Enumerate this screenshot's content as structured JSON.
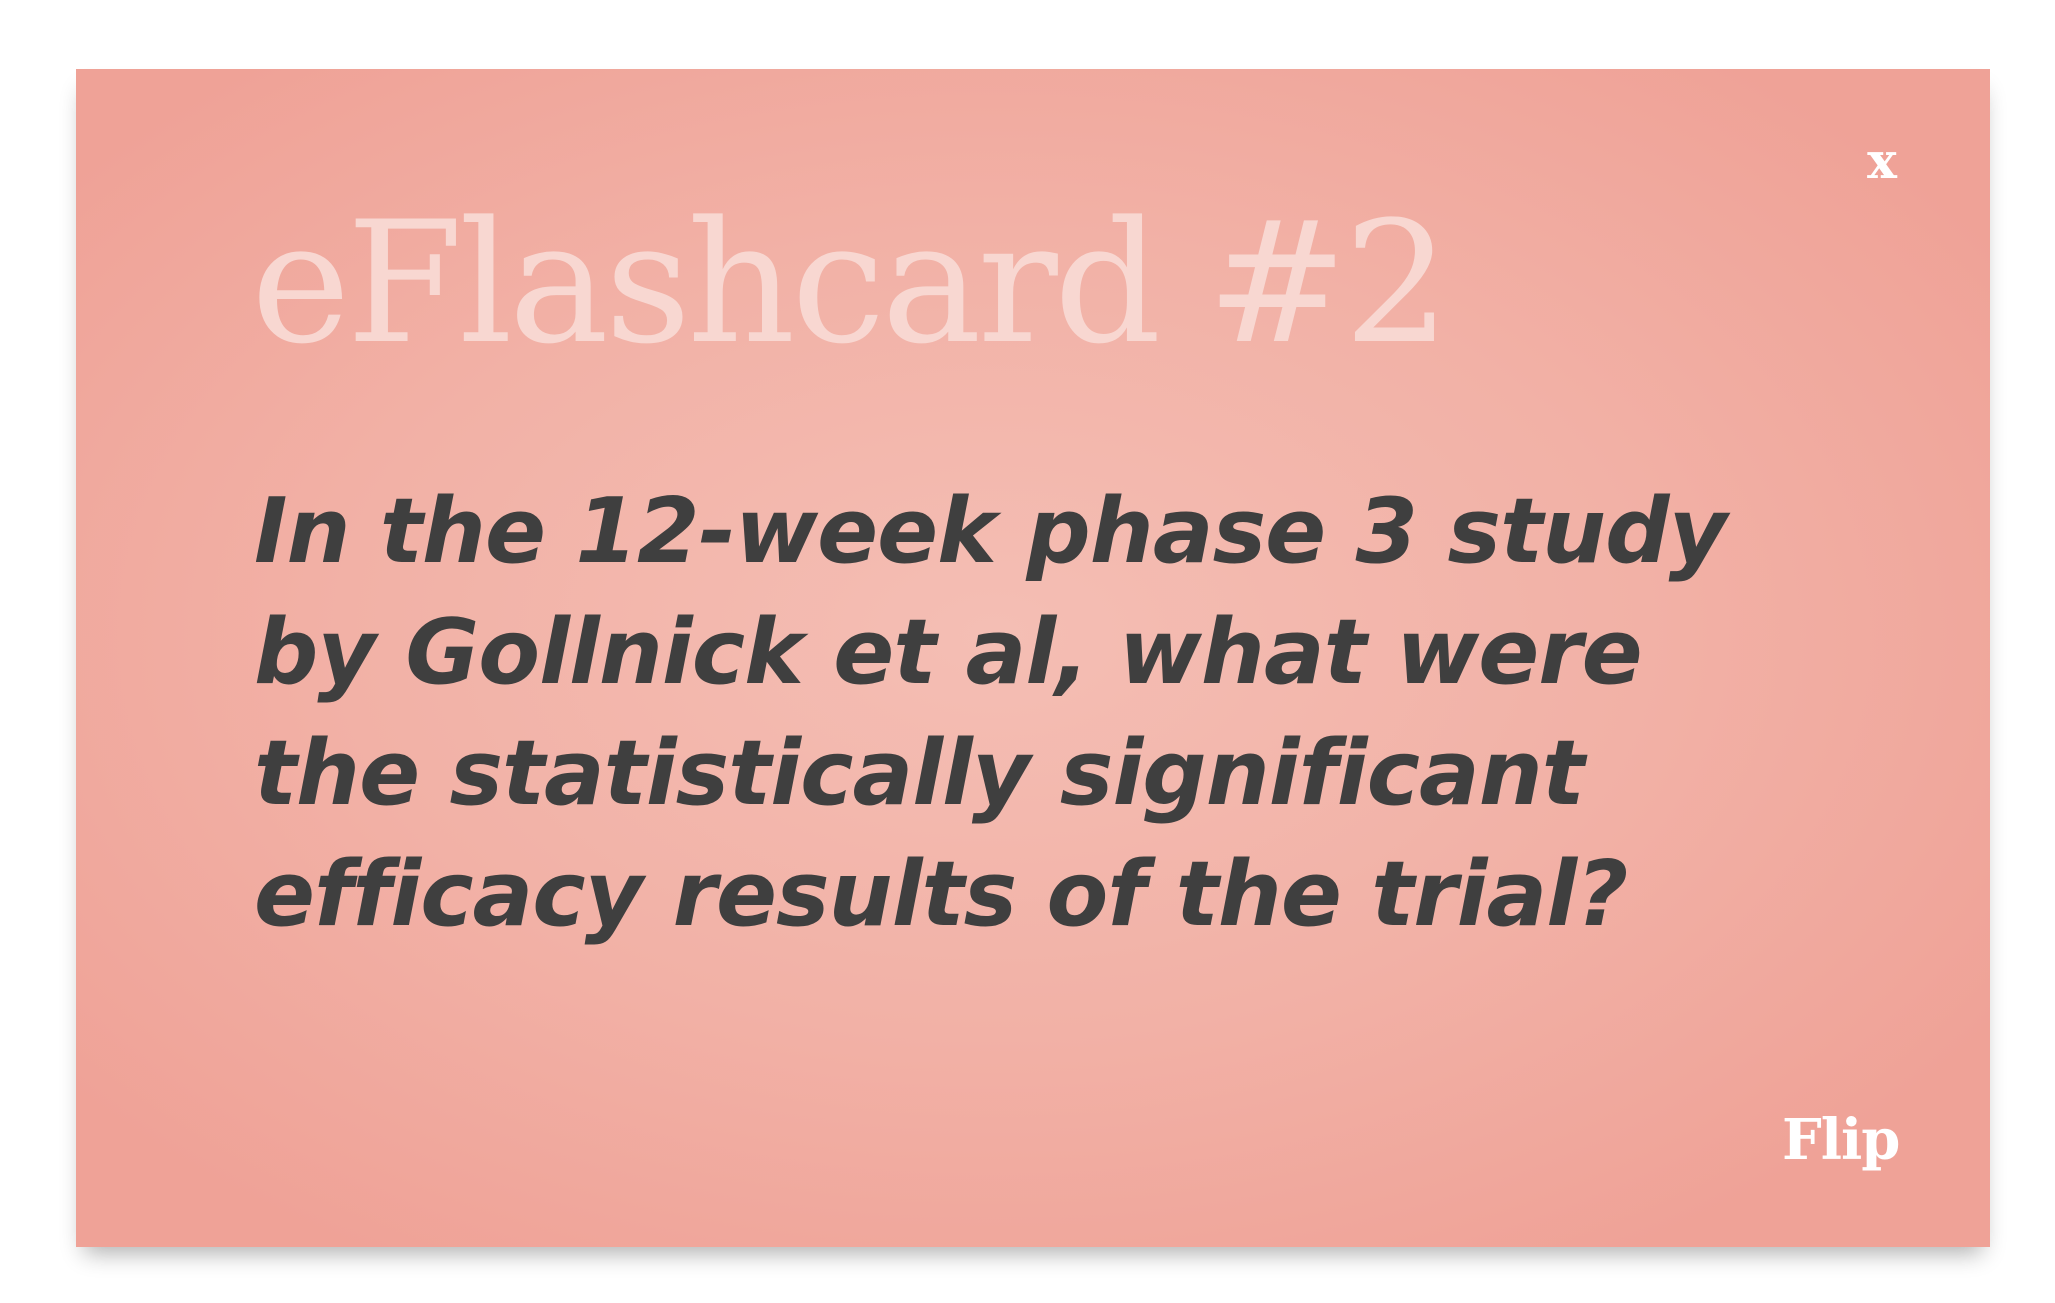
{
  "card": {
    "title": "eFlashcard #2",
    "question_lines": [
      "In the 12-week phase 3 study",
      "by Gollnick et al, what were",
      "the statistically significant",
      "efficacy results of the trial?"
    ],
    "close_label": "x",
    "flip_label": "Flip"
  },
  "colors": {
    "card_background": "#f2b1a6",
    "title_text": "#f8d7d1",
    "question_text": "#3f3f3f",
    "control_text": "#ffffff"
  }
}
